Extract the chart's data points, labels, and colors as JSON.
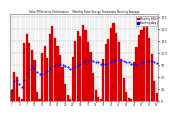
{
  "title": "Solar PV/Inverter Performance    Monthly Solar Energy Production Running Average",
  "bar_color": "#dd0000",
  "avg_color": "#0000dd",
  "bar_edge_color": "#cc0000",
  "background_color": "#ffffff",
  "grid_color": "#aaaaaa",
  "values": [
    22,
    60,
    50,
    8,
    5,
    120,
    140,
    120,
    105,
    85,
    18,
    5,
    100,
    115,
    90,
    140,
    155,
    130,
    115,
    95,
    70,
    35,
    12,
    5,
    92,
    125,
    145,
    135,
    158,
    148,
    122,
    102,
    58,
    22,
    8,
    5,
    88,
    118,
    128,
    152,
    162,
    142,
    122,
    88,
    48,
    18,
    6,
    5,
    82,
    112,
    138,
    148,
    158,
    162,
    132,
    98,
    42,
    16
  ],
  "running_avg": [
    22,
    41,
    44,
    35,
    29,
    43,
    58,
    66,
    70,
    68,
    61,
    55,
    57,
    60,
    62,
    67,
    73,
    75,
    77,
    77,
    75,
    73,
    70,
    66,
    68,
    71,
    74,
    77,
    81,
    84,
    85,
    85,
    84,
    82,
    80,
    77,
    77,
    77,
    78,
    80,
    83,
    85,
    86,
    86,
    84,
    82,
    80,
    77,
    76,
    76,
    78,
    79,
    81,
    83,
    84,
    83,
    81,
    79
  ],
  "ylim": [
    0,
    180
  ],
  "yticks": [
    0,
    25,
    50,
    75,
    100,
    125,
    150,
    175
  ],
  "legend_labels": [
    "Monthly kWh",
    "Running Avg"
  ],
  "legend_colors": [
    "#dd0000",
    "#0000dd"
  ]
}
